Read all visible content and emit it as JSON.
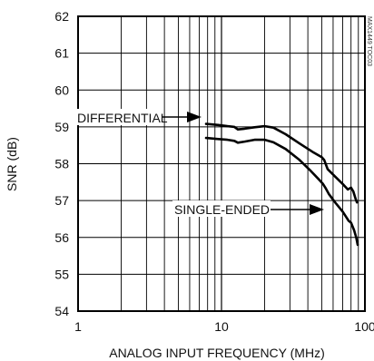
{
  "chart_data": {
    "type": "line",
    "title": "",
    "xlabel": "ANALOG INPUT FREQUENCY (MHz)",
    "ylabel": "SNR (dB)",
    "x_scale": "log",
    "xlim": [
      1,
      100
    ],
    "ylim": [
      54,
      62
    ],
    "x_tick_labels": [
      "1",
      "10",
      "100"
    ],
    "x_tick_values": [
      1,
      10,
      100
    ],
    "y_ticks": [
      54,
      55,
      56,
      57,
      58,
      59,
      60,
      61,
      62
    ],
    "y_tick_labels": [
      "54",
      "55",
      "56",
      "57",
      "58",
      "59",
      "60",
      "61",
      "62"
    ],
    "grid": true,
    "series": [
      {
        "name": "DIFFERENTIAL",
        "color": "#000000",
        "points": [
          {
            "x": 7.8,
            "y": 59.08
          },
          {
            "x": 9.5,
            "y": 59.05
          },
          {
            "x": 11.0,
            "y": 59.02
          },
          {
            "x": 12.3,
            "y": 59.0
          },
          {
            "x": 13.0,
            "y": 58.93
          },
          {
            "x": 14.5,
            "y": 58.95
          },
          {
            "x": 17.0,
            "y": 58.99
          },
          {
            "x": 20.0,
            "y": 59.02
          },
          {
            "x": 23.0,
            "y": 58.98
          },
          {
            "x": 28.0,
            "y": 58.8
          },
          {
            "x": 35.0,
            "y": 58.55
          },
          {
            "x": 44.0,
            "y": 58.3
          },
          {
            "x": 50.0,
            "y": 58.18
          },
          {
            "x": 52.0,
            "y": 58.1
          },
          {
            "x": 55.0,
            "y": 57.85
          },
          {
            "x": 62.0,
            "y": 57.65
          },
          {
            "x": 70.0,
            "y": 57.45
          },
          {
            "x": 76.0,
            "y": 57.3
          },
          {
            "x": 80.0,
            "y": 57.35
          },
          {
            "x": 83.0,
            "y": 57.25
          },
          {
            "x": 86.0,
            "y": 57.05
          },
          {
            "x": 88.0,
            "y": 56.95
          }
        ]
      },
      {
        "name": "SINGLE-ENDED",
        "color": "#000000",
        "points": [
          {
            "x": 7.8,
            "y": 58.7
          },
          {
            "x": 9.5,
            "y": 58.67
          },
          {
            "x": 11.0,
            "y": 58.65
          },
          {
            "x": 12.3,
            "y": 58.62
          },
          {
            "x": 13.0,
            "y": 58.57
          },
          {
            "x": 14.5,
            "y": 58.6
          },
          {
            "x": 17.0,
            "y": 58.65
          },
          {
            "x": 20.0,
            "y": 58.65
          },
          {
            "x": 23.0,
            "y": 58.58
          },
          {
            "x": 28.0,
            "y": 58.4
          },
          {
            "x": 35.0,
            "y": 58.1
          },
          {
            "x": 42.0,
            "y": 57.8
          },
          {
            "x": 47.0,
            "y": 57.6
          },
          {
            "x": 51.0,
            "y": 57.45
          },
          {
            "x": 53.0,
            "y": 57.35
          },
          {
            "x": 56.0,
            "y": 57.18
          },
          {
            "x": 62.0,
            "y": 56.95
          },
          {
            "x": 70.0,
            "y": 56.7
          },
          {
            "x": 77.0,
            "y": 56.45
          },
          {
            "x": 80.0,
            "y": 56.4
          },
          {
            "x": 84.0,
            "y": 56.2
          },
          {
            "x": 87.0,
            "y": 56.0
          },
          {
            "x": 89.0,
            "y": 55.8
          }
        ]
      }
    ],
    "annotations": [
      {
        "text": "DIFFERENTIAL",
        "series": "DIFFERENTIAL"
      },
      {
        "text": "SINGLE-ENDED",
        "series": "SINGLE-ENDED"
      }
    ]
  },
  "edge_mark": "MAX1449 TOC03"
}
